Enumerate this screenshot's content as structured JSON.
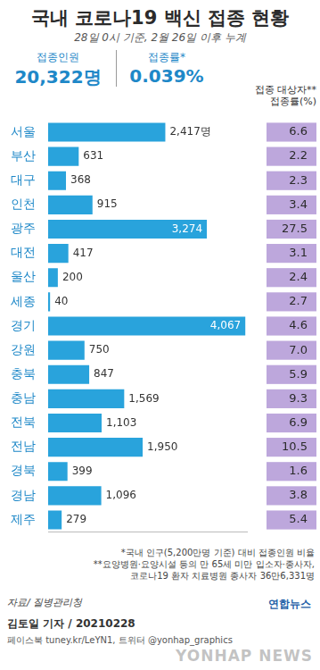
{
  "chart_data": {
    "type": "bar",
    "title": "국내 코로나19 백신 접종 현황",
    "subtitle": "28일 0시 기준, 2월 26일 이후 누계",
    "orientation": "horizontal",
    "categories": [
      "서울",
      "부산",
      "대구",
      "인천",
      "광주",
      "대전",
      "울산",
      "세종",
      "경기",
      "강원",
      "충북",
      "충남",
      "전북",
      "전남",
      "경북",
      "경남",
      "제주"
    ],
    "values": [
      2417,
      631,
      368,
      915,
      3274,
      417,
      200,
      40,
      4067,
      750,
      847,
      1569,
      1103,
      1950,
      399,
      1096,
      279
    ],
    "value_labels": [
      "2,417명",
      "631",
      "368",
      "915",
      "3,274",
      "417",
      "200",
      "40",
      "4,067",
      "750",
      "847",
      "1,569",
      "1,103",
      "1,950",
      "399",
      "1,096",
      "279"
    ],
    "color": "#29a3dc",
    "xlim": [
      0,
      4100
    ],
    "xticks": [],
    "grid": false,
    "tick_labels": "y",
    "data_labels": true,
    "rates_title": [
      "접종 대상자**",
      "접종률(%)"
    ],
    "rates": [
      6.6,
      2.2,
      2.3,
      3.4,
      27.5,
      3.1,
      2.4,
      2.7,
      4.6,
      7.0,
      5.9,
      9.3,
      6.9,
      10.5,
      1.6,
      3.8,
      5.4
    ],
    "rate_labels": [
      "6.6",
      "2.2",
      "2.3",
      "3.4",
      "27.5",
      "3.1",
      "2.4",
      "2.7",
      "4.6",
      "7.0",
      "5.9",
      "9.3",
      "6.9",
      "10.5",
      "1.6",
      "3.8",
      "5.4"
    ]
  },
  "summary": {
    "people_label": "접종인원",
    "people": "20,322명",
    "rate_label": "접종률*",
    "rate": "0.039%"
  },
  "notes": [
    "*국내 인구(5,200만명 기준) 대비 접종인원 비율",
    "**요양병원·요양시설 등의 만 65세 미만 입소자·종사자,",
    "코로나19 환자 치료병원 종사자 36만6,331명"
  ],
  "source": "자료/ 질병관리청",
  "credit": "김토일 기자 / 20210228",
  "social": "페이스북 tuney.kr/LeYN1, 트위터 @yonhap_graphics",
  "logo": "연합뉴스",
  "watermark": "YONHAP NEWS"
}
